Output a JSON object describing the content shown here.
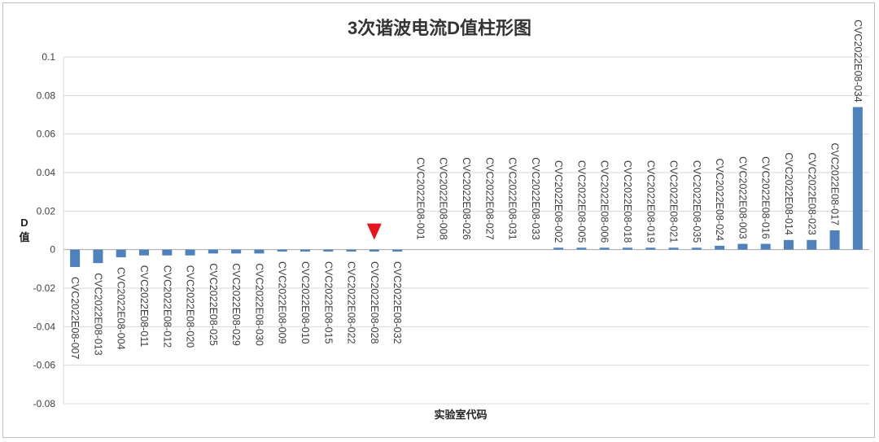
{
  "chart_data": {
    "type": "bar",
    "title": "3次谐波电流D值柱形图",
    "xlabel": "实验室代码",
    "ylabel": "D值",
    "ylim": [
      -0.08,
      0.1
    ],
    "yticks": [
      "0.1",
      "0.08",
      "0.06",
      "0.04",
      "0.02",
      "0",
      "-0.02",
      "-0.04",
      "-0.06",
      "-0.08"
    ],
    "grid": true,
    "bar_color": "#4f81bd",
    "marker": {
      "category": "CVC2022E08-028",
      "shape": "down-triangle",
      "color": "#e8141c"
    },
    "categories": [
      "CVC2022E08-007",
      "CVC2022E08-013",
      "CVC2022E08-004",
      "CVC2022E08-011",
      "CVC2022E08-012",
      "CVC2022E08-020",
      "CVC2022E08-025",
      "CVC2022E08-029",
      "CVC2022E08-030",
      "CVC2022E08-009",
      "CVC2022E08-010",
      "CVC2022E08-015",
      "CVC2022E08-022",
      "CVC2022E08-028",
      "CVC2022E08-032",
      "CVC2022E08-001",
      "CVC2022E08-008",
      "CVC2022E08-026",
      "CVC2022E08-027",
      "CVC2022E08-031",
      "CVC2022E08-033",
      "CVC2022E08-002",
      "CVC2022E08-005",
      "CVC2022E08-006",
      "CVC2022E08-018",
      "CVC2022E08-019",
      "CVC2022E08-021",
      "CVC2022E08-035",
      "CVC2022E08-024",
      "CVC2022E08-003",
      "CVC2022E08-016",
      "CVC2022E08-014",
      "CVC2022E08-023",
      "CVC2022E08-017",
      "CVC2022E08-034"
    ],
    "values": [
      -0.009,
      -0.007,
      -0.004,
      -0.003,
      -0.003,
      -0.003,
      -0.002,
      -0.002,
      -0.002,
      -0.001,
      -0.001,
      -0.001,
      -0.001,
      -0.001,
      -0.001,
      0,
      0,
      0,
      0,
      0,
      0,
      0.001,
      0.001,
      0.001,
      0.001,
      0.001,
      0.001,
      0.001,
      0.002,
      0.003,
      0.003,
      0.005,
      0.005,
      0.01,
      0.074
    ]
  }
}
